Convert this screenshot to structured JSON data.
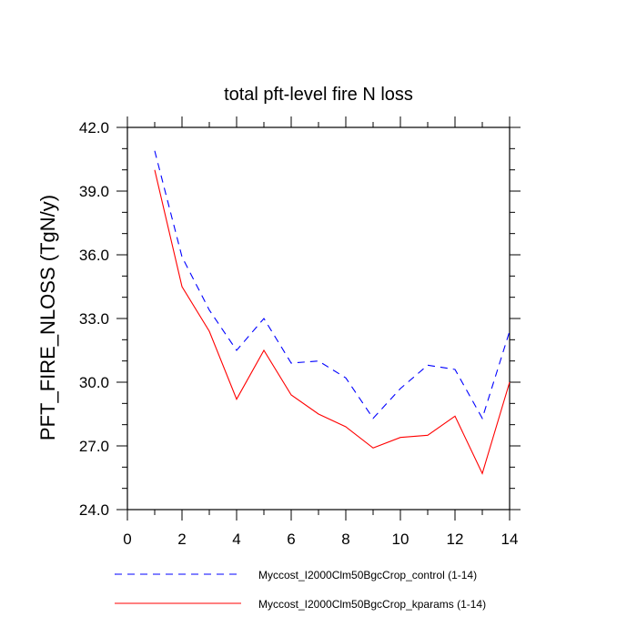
{
  "chart_data": {
    "type": "line",
    "title": "total pft-level fire N loss",
    "xlabel": "",
    "ylabel": "PFT_FIRE_NLOSS  (TgN/y)",
    "xlim": [
      0,
      14
    ],
    "ylim": [
      24,
      42
    ],
    "x_ticks": [
      0,
      2,
      4,
      6,
      8,
      10,
      12,
      14
    ],
    "x_tick_labels": [
      "0",
      "2",
      "4",
      "6",
      "8",
      "10",
      "12",
      "14"
    ],
    "y_ticks": [
      24,
      27,
      30,
      33,
      36,
      39,
      42
    ],
    "y_tick_labels": [
      "24.0",
      "27.0",
      "30.0",
      "33.0",
      "36.0",
      "39.0",
      "42.0"
    ],
    "x": [
      1,
      2,
      3,
      4,
      5,
      6,
      7,
      8,
      9,
      10,
      11,
      12,
      13,
      14
    ],
    "series": [
      {
        "name": "Myccost_I2000Clm50BgcCrop_control (1-14)",
        "color": "#0000ff",
        "dash": "dashed",
        "values": [
          40.9,
          35.9,
          33.4,
          31.5,
          33.0,
          30.9,
          31.0,
          30.2,
          28.3,
          29.7,
          30.8,
          30.6,
          28.3,
          32.4
        ]
      },
      {
        "name": "Myccost_I2000Clm50BgcCrop_kparams (1-14)",
        "color": "#ff0000",
        "dash": "solid",
        "values": [
          40.0,
          34.5,
          32.4,
          29.2,
          31.5,
          29.4,
          28.5,
          27.9,
          26.9,
          27.4,
          27.5,
          28.4,
          25.7,
          30.0
        ]
      }
    ],
    "grid": false,
    "legend_position": "bottom"
  }
}
